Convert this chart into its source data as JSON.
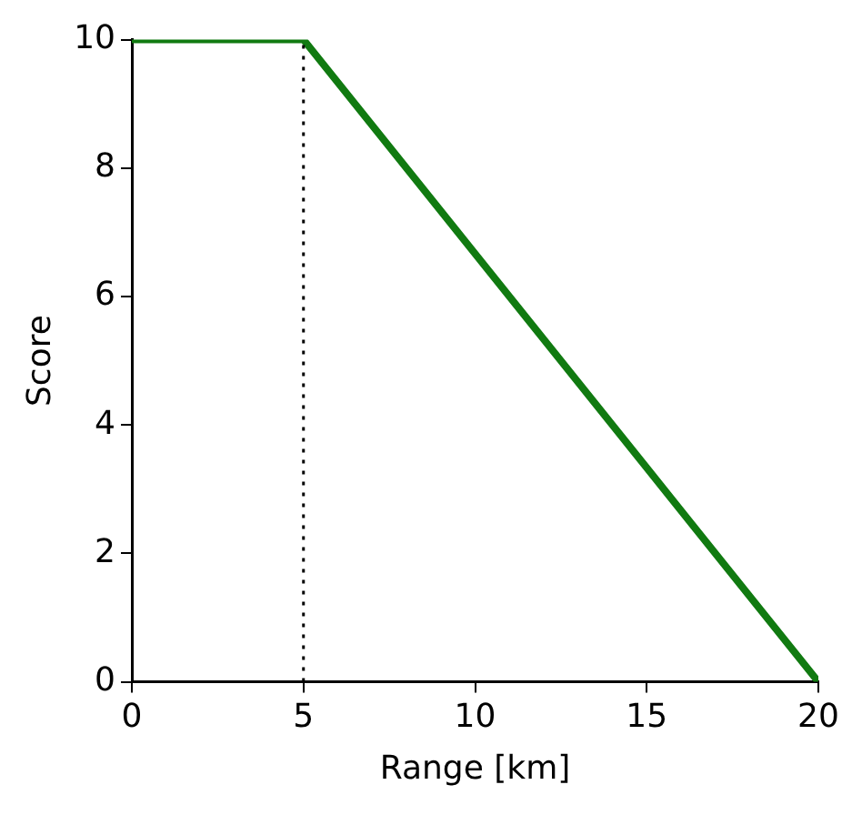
{
  "chart_data": {
    "type": "line",
    "xlabel": "Range [km]",
    "ylabel": "Score",
    "x": [
      0,
      5,
      20
    ],
    "series": [
      {
        "color": "#117a11",
        "values": [
          10,
          10,
          0
        ]
      }
    ],
    "xlim": [
      0,
      20
    ],
    "xticks": [
      0,
      5,
      10,
      15,
      20
    ],
    "ylim": [
      0,
      10
    ],
    "yticks": [
      0,
      2,
      4,
      6,
      8,
      10
    ],
    "marker": "none",
    "line_style": "solid",
    "legend": false,
    "ref_lines": [
      {
        "axis": "x",
        "value": 5,
        "color": "#000000",
        "line_style": "dotted"
      }
    ]
  }
}
